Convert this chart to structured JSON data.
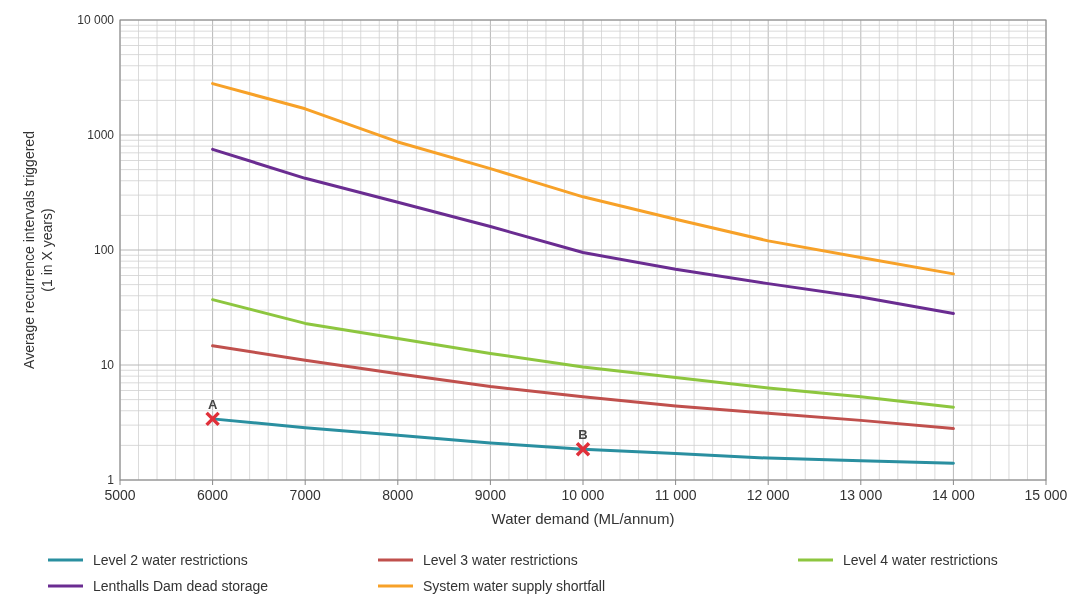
{
  "chart_data": {
    "type": "line",
    "xlabel": "Water demand (ML/annum)",
    "ylabel": "Average recurrence intervals triggered\n(1 in X years)",
    "log": "y",
    "grid": true,
    "legend": "bottom",
    "marker": "none",
    "line_style": "solid",
    "x": [
      6000,
      7000,
      8000,
      9000,
      10000,
      11000,
      12000,
      13000,
      14000
    ],
    "xlim": [
      5000,
      15000
    ],
    "xticks": [
      5000,
      6000,
      7000,
      8000,
      9000,
      {
        "value": 10000,
        "label": "10 000"
      },
      {
        "value": 11000,
        "label": "11 000"
      },
      {
        "value": 12000,
        "label": "12 000"
      },
      {
        "value": 13000,
        "label": "13 000"
      },
      {
        "value": 14000,
        "label": "14 000"
      },
      {
        "value": 15000,
        "label": "15 000"
      }
    ],
    "ylim": [
      1,
      10000
    ],
    "yticks": [
      1,
      10,
      100,
      1000,
      {
        "value": 10000,
        "label": "10 000"
      }
    ],
    "series": [
      {
        "name": "Level 2 water restrictions",
        "color": "#2a8fa0",
        "values": [
          3.4,
          2.85,
          2.45,
          2.1,
          1.85,
          1.7,
          1.55,
          1.47,
          1.4
        ]
      },
      {
        "name": "Level 3 water restrictions",
        "color": "#c0504d",
        "values": [
          14.7,
          11,
          8.4,
          6.5,
          5.3,
          4.4,
          3.8,
          3.3,
          2.8
        ]
      },
      {
        "name": "Level 4 water restrictions",
        "color": "#8dc63f",
        "values": [
          37,
          23,
          17,
          12.6,
          9.6,
          7.8,
          6.3,
          5.3,
          4.3
        ]
      },
      {
        "name": "Lenthalls Dam dead storage",
        "color": "#6a2c91",
        "values": [
          750,
          420,
          260,
          160,
          95,
          68,
          51,
          39,
          28
        ]
      },
      {
        "name": "System water supply shortfall",
        "color": "#f7a128",
        "values": [
          2800,
          1690,
          870,
          510,
          290,
          185,
          120,
          86,
          62
        ]
      },
      {
        "type": "scatter",
        "marker": "cross",
        "color": "#e0303a",
        "x": [
          6000,
          10000
        ],
        "values": [
          3.4,
          1.85
        ]
      }
    ],
    "annotations": [
      {
        "text": "A",
        "x": 6000,
        "y": 3.4
      },
      {
        "text": "B",
        "x": 10000,
        "y": 1.85
      }
    ]
  }
}
